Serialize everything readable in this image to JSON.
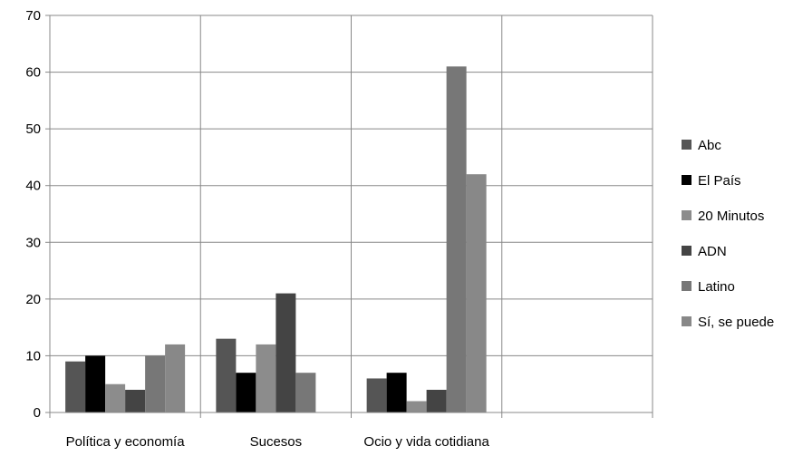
{
  "chart_data": {
    "type": "bar",
    "categories": [
      "Política y economía",
      "Sucesos",
      "Ocio y vida cotidiana",
      ""
    ],
    "series": [
      {
        "name": "Abc",
        "values": [
          9,
          13,
          6,
          null
        ]
      },
      {
        "name": "El País",
        "values": [
          10,
          7,
          7,
          null
        ]
      },
      {
        "name": "20 Minutos",
        "values": [
          5,
          12,
          2,
          null
        ]
      },
      {
        "name": "ADN",
        "values": [
          4,
          21,
          4,
          null
        ]
      },
      {
        "name": "Latino",
        "values": [
          10,
          7,
          61,
          null
        ]
      },
      {
        "name": "Sí, se puede",
        "values": [
          12,
          null,
          42,
          null
        ]
      }
    ],
    "colors": [
      "#555555",
      "#000000",
      "#8c8c8c",
      "#444444",
      "#777777",
      "#888888"
    ],
    "yticks": [
      0,
      10,
      20,
      30,
      40,
      50,
      60,
      70
    ],
    "ylim": [
      0,
      70
    ],
    "grid": true,
    "legend": "right"
  }
}
